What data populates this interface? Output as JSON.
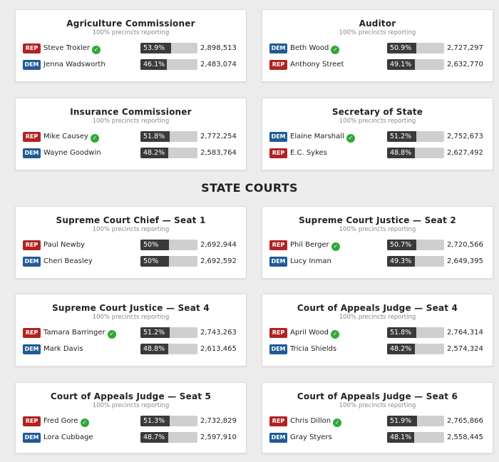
{
  "section_header": "STATE COURTS",
  "colors": {
    "rep": "#b22222",
    "dem": "#1f5a96",
    "bar_fill": "#3a3a3a",
    "bar_bg": "#cfcfcf",
    "winner_check": "#2fa838"
  },
  "races": [
    {
      "title": "Agriculture Commissioner",
      "sub": "100% precincts reporting",
      "candidates": [
        {
          "party": "REP",
          "name": "Steve Troxler",
          "winner": true,
          "pct": "53.9%",
          "pct_value": 53.9,
          "votes": "2,898,513"
        },
        {
          "party": "DEM",
          "name": "Jenna Wadsworth",
          "winner": false,
          "pct": "46.1%",
          "pct_value": 46.1,
          "votes": "2,483,074"
        }
      ]
    },
    {
      "title": "Auditor",
      "sub": "100% precincts reporting",
      "candidates": [
        {
          "party": "DEM",
          "name": "Beth Wood",
          "winner": true,
          "pct": "50.9%",
          "pct_value": 50.9,
          "votes": "2,727,297"
        },
        {
          "party": "REP",
          "name": "Anthony Street",
          "winner": false,
          "pct": "49.1%",
          "pct_value": 49.1,
          "votes": "2,632,770"
        }
      ]
    },
    {
      "title": "Insurance Commissioner",
      "sub": "100% precincts reporting",
      "candidates": [
        {
          "party": "REP",
          "name": "Mike Causey",
          "winner": true,
          "pct": "51.8%",
          "pct_value": 51.8,
          "votes": "2,772,254"
        },
        {
          "party": "DEM",
          "name": "Wayne Goodwin",
          "winner": false,
          "pct": "48.2%",
          "pct_value": 48.2,
          "votes": "2,583,764"
        }
      ]
    },
    {
      "title": "Secretary of State",
      "sub": "100% precincts reporting",
      "candidates": [
        {
          "party": "DEM",
          "name": "Elaine Marshall",
          "winner": true,
          "pct": "51.2%",
          "pct_value": 51.2,
          "votes": "2,752,673"
        },
        {
          "party": "REP",
          "name": "E.C. Sykes",
          "winner": false,
          "pct": "48.8%",
          "pct_value": 48.8,
          "votes": "2,627,492"
        }
      ]
    },
    {
      "title": "Supreme Court Chief — Seat 1",
      "sub": "100% precincts reporting",
      "candidates": [
        {
          "party": "REP",
          "name": "Paul Newby",
          "winner": false,
          "pct": "50%",
          "pct_value": 50,
          "votes": "2,692,944"
        },
        {
          "party": "DEM",
          "name": "Cheri Beasley",
          "winner": false,
          "pct": "50%",
          "pct_value": 50,
          "votes": "2,692,592"
        }
      ]
    },
    {
      "title": "Supreme Court Justice — Seat 2",
      "sub": "100% precincts reporting",
      "candidates": [
        {
          "party": "REP",
          "name": "Phil Berger",
          "winner": true,
          "pct": "50.7%",
          "pct_value": 50.7,
          "votes": "2,720,566"
        },
        {
          "party": "DEM",
          "name": "Lucy Inman",
          "winner": false,
          "pct": "49.3%",
          "pct_value": 49.3,
          "votes": "2,649,395"
        }
      ]
    },
    {
      "title": "Supreme Court Justice — Seat 4",
      "sub": "100% precincts reporting",
      "candidates": [
        {
          "party": "REP",
          "name": "Tamara Barringer",
          "winner": true,
          "pct": "51.2%",
          "pct_value": 51.2,
          "votes": "2,743,263"
        },
        {
          "party": "DEM",
          "name": "Mark Davis",
          "winner": false,
          "pct": "48.8%",
          "pct_value": 48.8,
          "votes": "2,613,465"
        }
      ]
    },
    {
      "title": "Court of Appeals Judge — Seat 4",
      "sub": "100% precincts reporting",
      "candidates": [
        {
          "party": "REP",
          "name": "April Wood",
          "winner": true,
          "pct": "51.8%",
          "pct_value": 51.8,
          "votes": "2,764,314"
        },
        {
          "party": "DEM",
          "name": "Tricia Shields",
          "winner": false,
          "pct": "48.2%",
          "pct_value": 48.2,
          "votes": "2,574,324"
        }
      ]
    },
    {
      "title": "Court of Appeals Judge — Seat 5",
      "sub": "100% precincts reporting",
      "candidates": [
        {
          "party": "REP",
          "name": "Fred Gore",
          "winner": true,
          "pct": "51.3%",
          "pct_value": 51.3,
          "votes": "2,732,829"
        },
        {
          "party": "DEM",
          "name": "Lora Cubbage",
          "winner": false,
          "pct": "48.7%",
          "pct_value": 48.7,
          "votes": "2,597,910"
        }
      ]
    },
    {
      "title": "Court of Appeals Judge — Seat 6",
      "sub": "100% precincts reporting",
      "candidates": [
        {
          "party": "REP",
          "name": "Chris Dillon",
          "winner": true,
          "pct": "51.9%",
          "pct_value": 51.9,
          "votes": "2,765,866"
        },
        {
          "party": "DEM",
          "name": "Gray Styers",
          "winner": false,
          "pct": "48.1%",
          "pct_value": 48.1,
          "votes": "2,558,445"
        }
      ]
    }
  ]
}
